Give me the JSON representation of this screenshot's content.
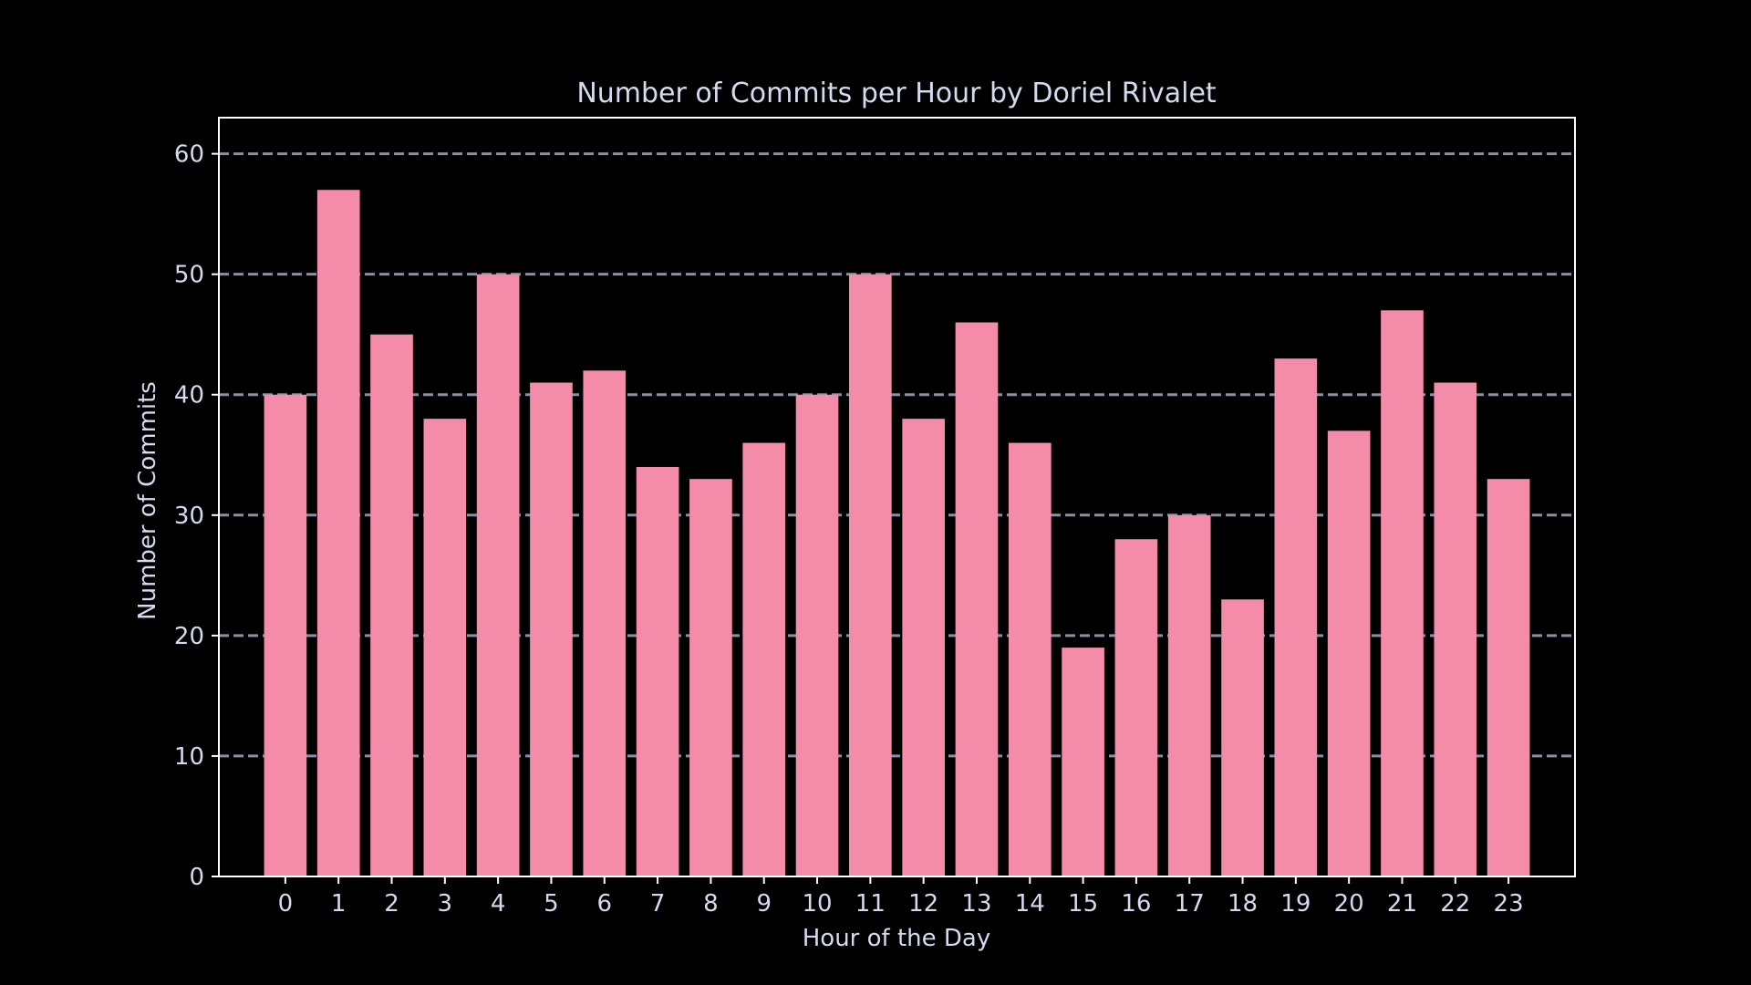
{
  "chart_data": {
    "type": "bar",
    "title": "Number of Commits per Hour by Doriel Rivalet",
    "xlabel": "Hour of the Day",
    "ylabel": "Number of Commits",
    "categories": [
      "0",
      "1",
      "2",
      "3",
      "4",
      "5",
      "6",
      "7",
      "8",
      "9",
      "10",
      "11",
      "12",
      "13",
      "14",
      "15",
      "16",
      "17",
      "18",
      "19",
      "20",
      "21",
      "22",
      "23"
    ],
    "values": [
      40,
      57,
      45,
      38,
      50,
      41,
      42,
      34,
      33,
      36,
      40,
      50,
      38,
      46,
      36,
      19,
      28,
      30,
      23,
      43,
      37,
      47,
      41,
      33
    ],
    "xlim": [
      -1.25,
      24.25
    ],
    "ylim": [
      0,
      63
    ],
    "yticks": [
      0,
      10,
      20,
      30,
      40,
      50,
      60
    ],
    "grid": "y, dashed",
    "colors": {
      "background": "#000000",
      "bar": "#f48ba9",
      "text": "#d4daf0",
      "frame": "#ffffff",
      "grid": "#8a8ea6"
    }
  }
}
